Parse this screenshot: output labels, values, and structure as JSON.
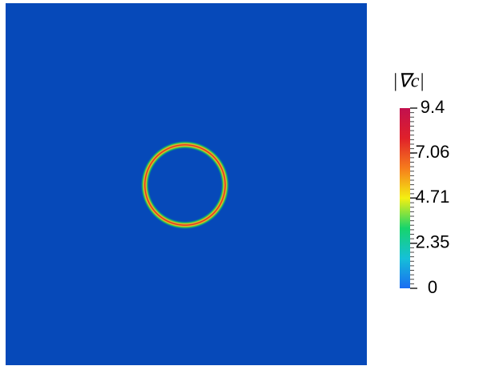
{
  "chart_data": {
    "type": "colorbar-field",
    "title": "|∇c|",
    "ylim": [
      0,
      9.4
    ],
    "yticks": [
      0,
      2.35,
      4.71,
      7.06,
      9.4
    ],
    "colormap": [
      "#1a6cf2",
      "#15c0d8",
      "#16d46c",
      "#f4f012",
      "#f67c1c",
      "#e0202a",
      "#c2104e"
    ],
    "background_color": "#0649b9"
  }
}
